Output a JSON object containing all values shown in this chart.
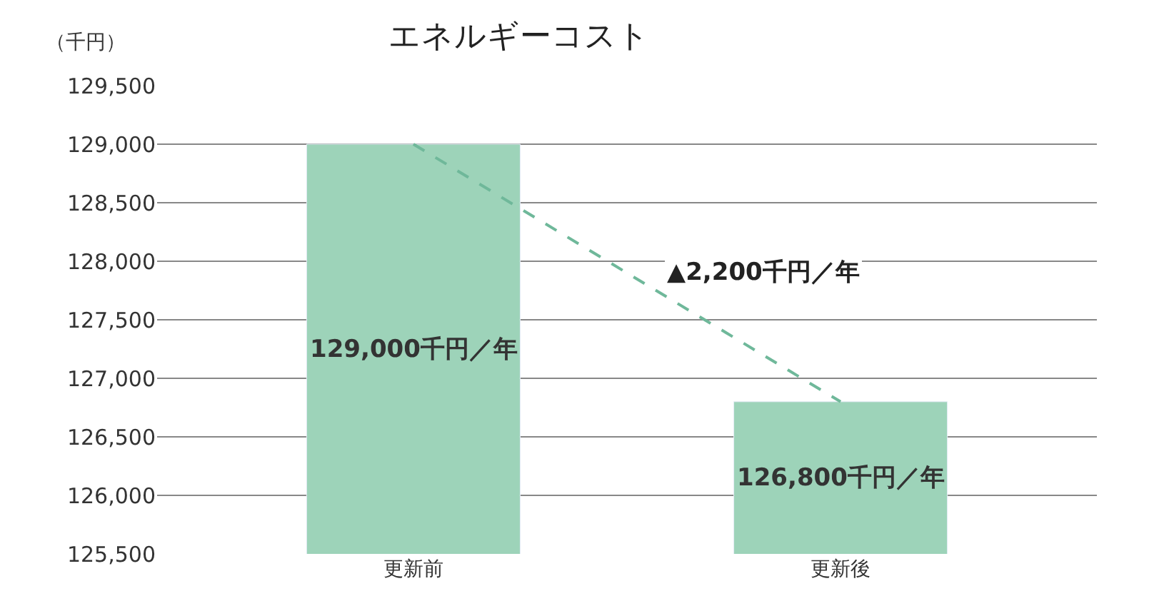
{
  "chart_data": {
    "type": "bar",
    "title": "エネルギーコスト",
    "ylabel": "（千円）",
    "categories": [
      "更新前",
      "更新後"
    ],
    "series": [
      {
        "type": "line",
        "color": "#6fb89a",
        "line_style": "dashed",
        "marker": "none",
        "values": [
          129000,
          126800
        ]
      },
      {
        "color": "#9dd3b9",
        "values": [
          129000,
          126800
        ],
        "value_labels": [
          "129,000千円／年",
          "126,800千円／年"
        ]
      }
    ],
    "ylim": [
      125500,
      129500
    ],
    "yticks": [
      {
        "value": 125500,
        "label": "125,500"
      },
      {
        "value": 126000,
        "label": "126,000"
      },
      {
        "value": 126500,
        "label": "126,500"
      },
      {
        "value": 127000,
        "label": "127,000"
      },
      {
        "value": 127500,
        "label": "127,500"
      },
      {
        "value": 128000,
        "label": "128,000"
      },
      {
        "value": 128500,
        "label": "128,500"
      },
      {
        "value": 129000,
        "label": "129,000"
      },
      {
        "value": 129500,
        "label": "129,500"
      }
    ],
    "annotations": [
      "▲2,200千円／年"
    ],
    "grid": "y"
  }
}
